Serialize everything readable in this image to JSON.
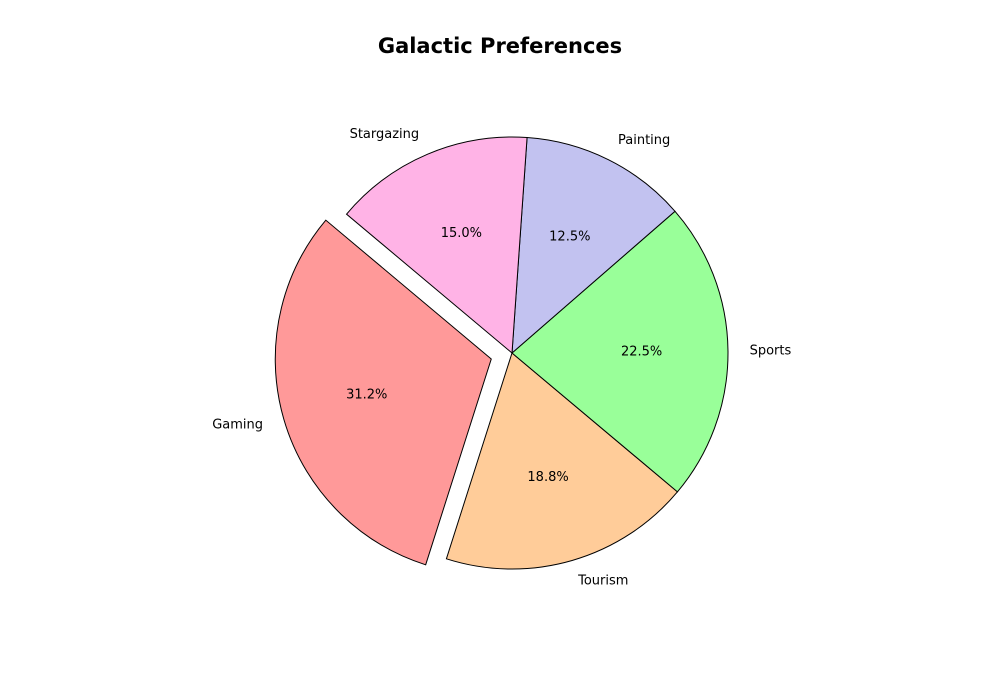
{
  "chart_data": {
    "type": "pie",
    "title": "Galactic Preferences",
    "categories": [
      "Gaming",
      "Tourism",
      "Sports",
      "Painting",
      "Stargazing"
    ],
    "values": [
      31.2,
      18.8,
      22.5,
      12.5,
      15.0
    ],
    "percent_labels": [
      "31.2%",
      "18.8%",
      "22.5%",
      "12.5%",
      "15.0%"
    ],
    "colors": [
      "#ff9999",
      "#ffcc99",
      "#99ff99",
      "#c2c2f0",
      "#ffb3e6"
    ],
    "explode": [
      0.1,
      0,
      0,
      0,
      0
    ],
    "start_angle": 140,
    "direction": "counterclockwise",
    "edge_color": "#000000"
  }
}
